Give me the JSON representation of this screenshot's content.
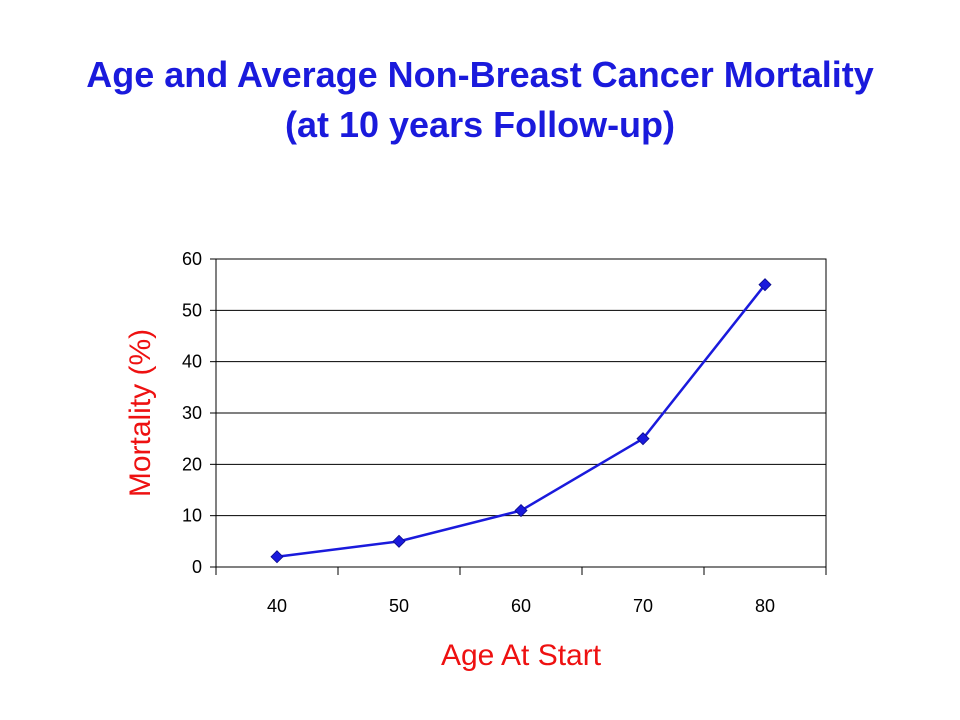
{
  "chart_data": {
    "type": "line",
    "title": "Age and Average Non-Breast Cancer Mortality",
    "subtitle": "(at 10 years Follow-up)",
    "xlabel": "Age At Start",
    "ylabel": "Mortality (%)",
    "categories": [
      "40",
      "50",
      "60",
      "70",
      "80"
    ],
    "series": [
      {
        "values": [
          2,
          5,
          11,
          25,
          55
        ]
      }
    ],
    "ylim": [
      0,
      60
    ],
    "yticks": [
      0,
      10,
      20,
      30,
      40,
      50,
      60
    ],
    "grid": true,
    "legend": "none",
    "colors": {
      "title": "#1a1adc",
      "axis_titles": "#ee1111",
      "series": "#1a1adc",
      "marker": "#1a1adc",
      "frame": "#000000"
    }
  }
}
